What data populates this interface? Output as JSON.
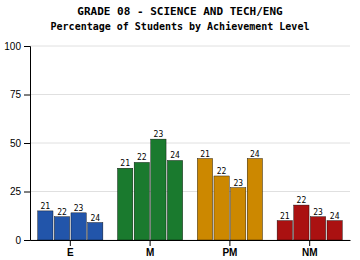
{
  "chart_data": {
    "type": "bar",
    "title": "GRADE 08 - SCIENCE AND TECH/ENG",
    "subtitle": "Percentage of Students by Achievement Level",
    "categories": [
      "E",
      "M",
      "PM",
      "NM"
    ],
    "colors": [
      "#2255aa",
      "#1a7a2e",
      "#cc8800",
      "#aa1111"
    ],
    "series": [
      {
        "name": "21",
        "values": [
          15,
          37,
          42,
          10
        ]
      },
      {
        "name": "22",
        "values": [
          12,
          40,
          33,
          18
        ]
      },
      {
        "name": "23",
        "values": [
          14,
          52,
          27,
          12
        ]
      },
      {
        "name": "24",
        "values": [
          9,
          41,
          42,
          10
        ]
      }
    ],
    "ylim": [
      0,
      100
    ],
    "yticks": [
      0,
      25,
      50,
      75,
      100
    ],
    "grid": true
  }
}
